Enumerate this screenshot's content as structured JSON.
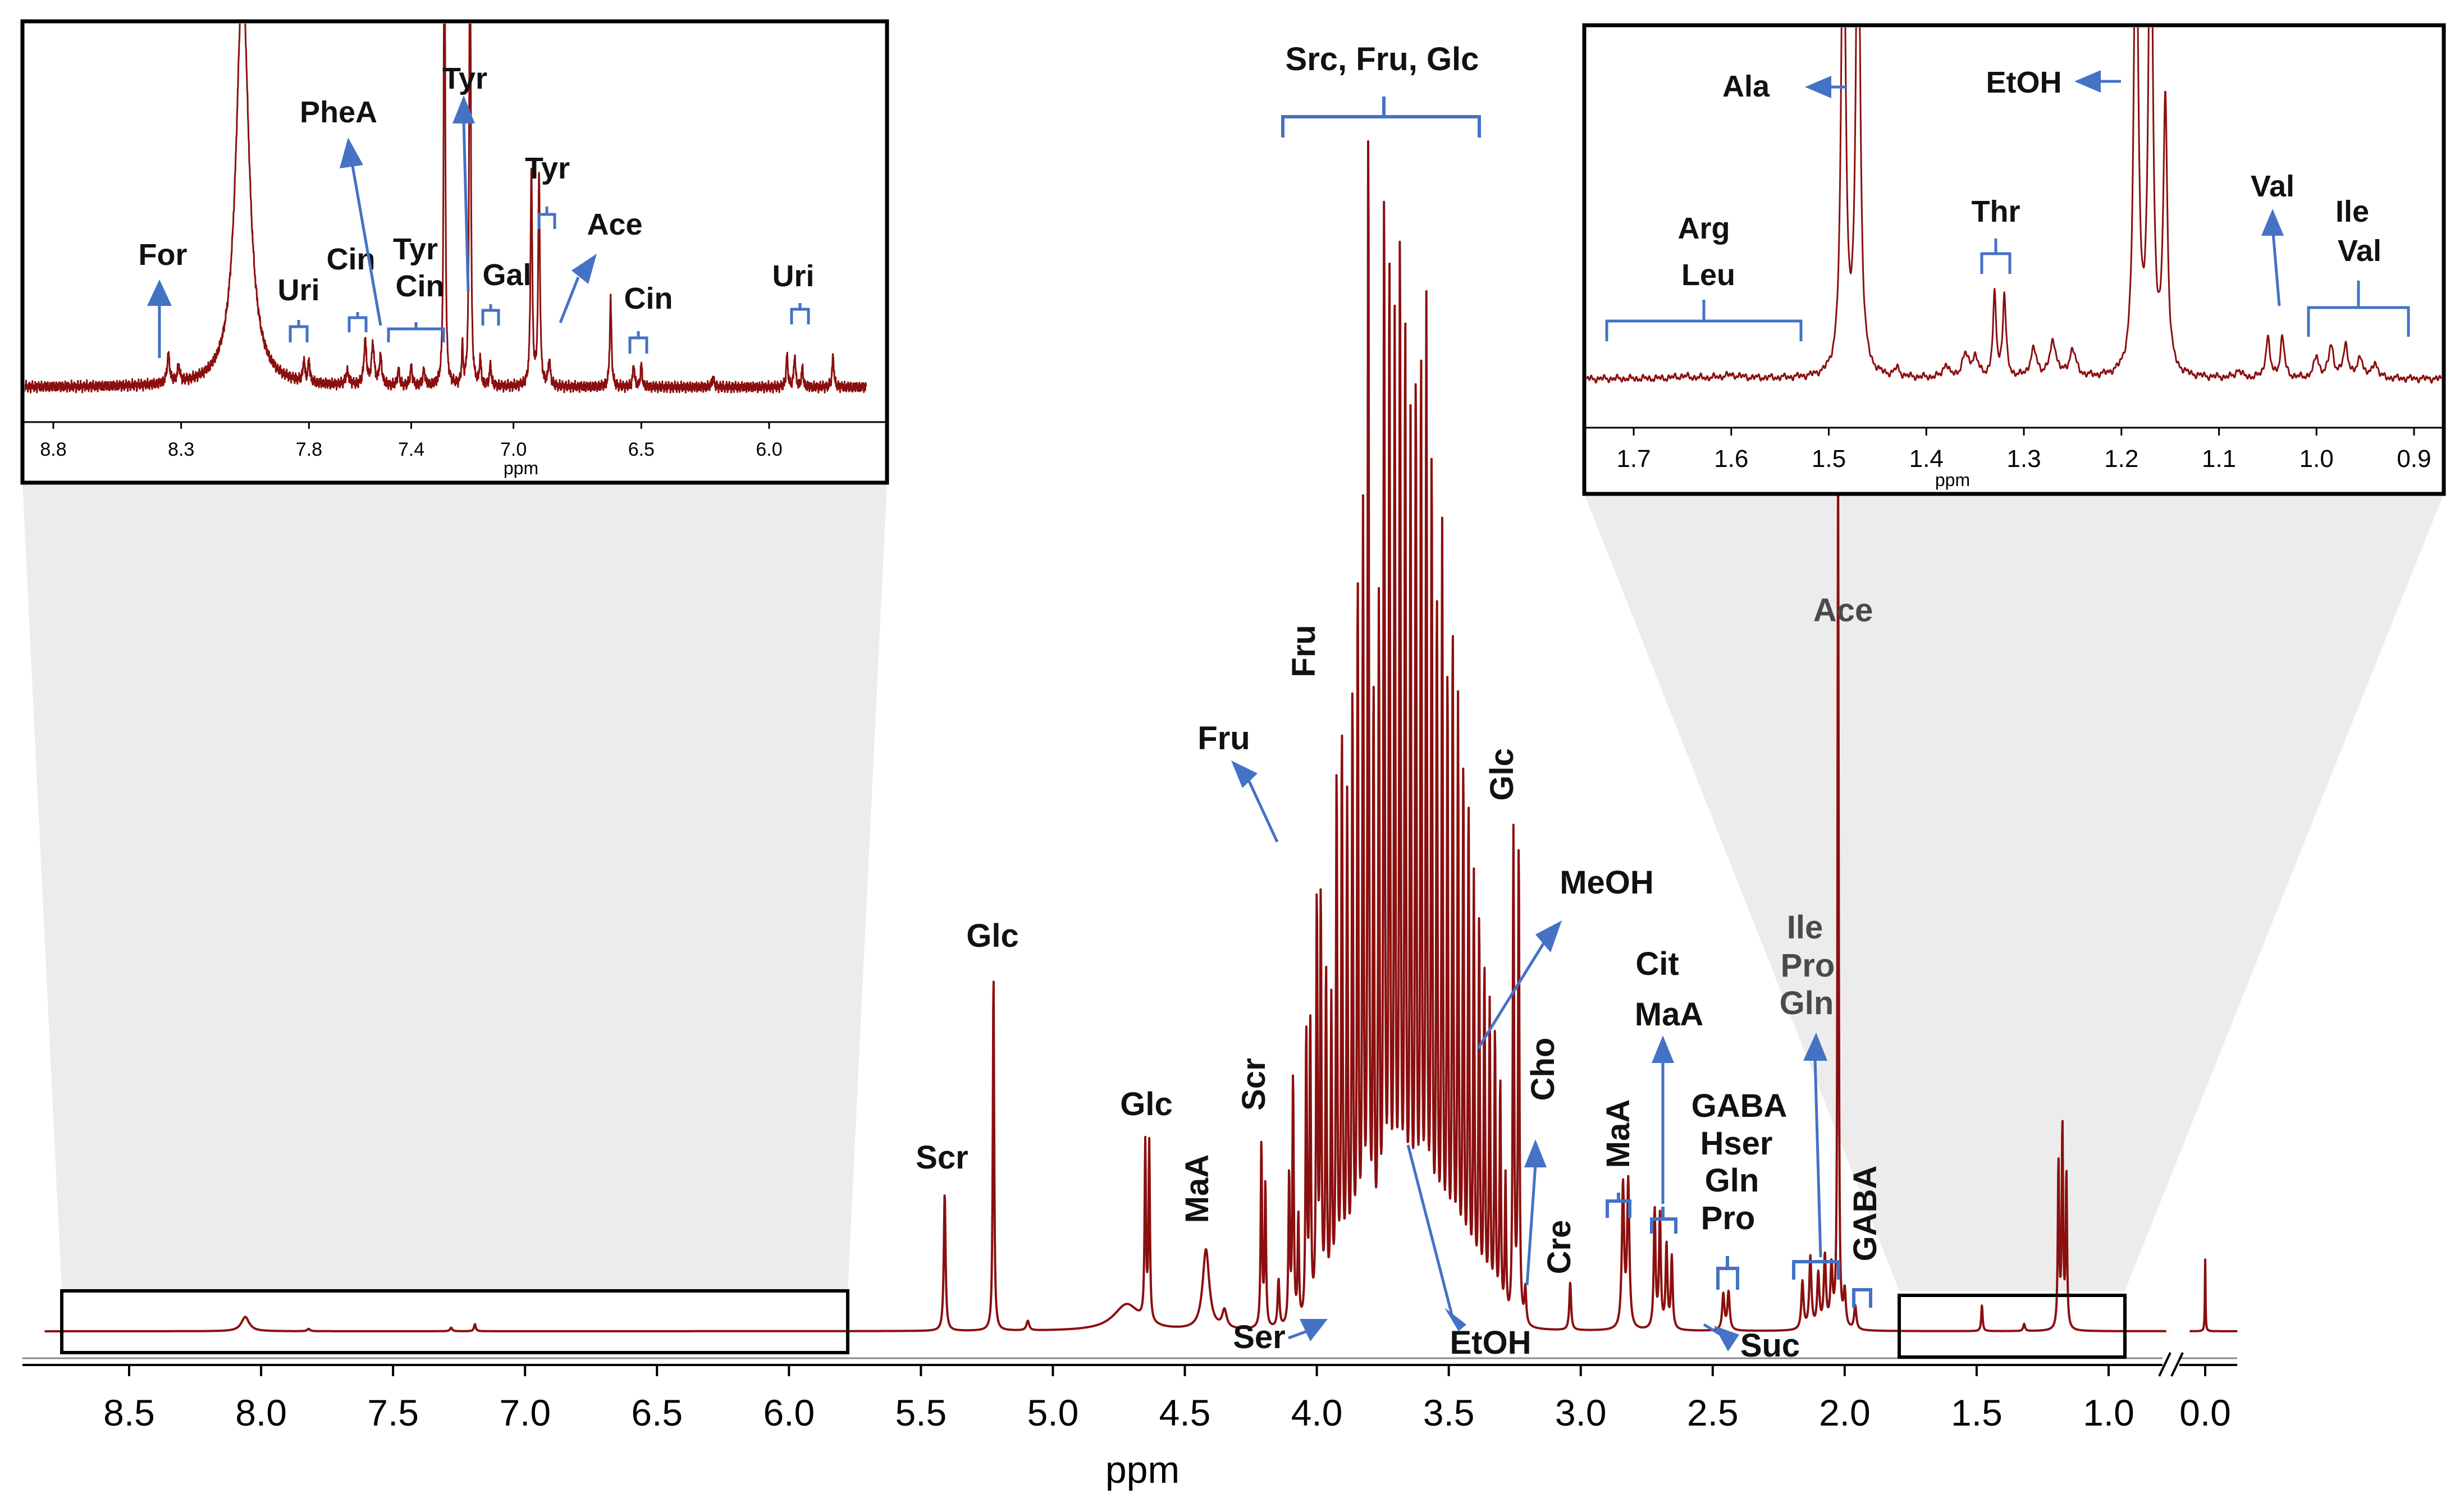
{
  "chart_data": {
    "type": "line",
    "title": "",
    "xlabel": "ppm",
    "axis": {
      "ticks": [
        "8.5",
        "8.0",
        "7.5",
        "7.0",
        "6.5",
        "6.0",
        "5.5",
        "5.0",
        "4.5",
        "4.0",
        "3.5",
        "3.0",
        "2.5",
        "2.0",
        "1.5",
        "1.0",
        "0.0"
      ]
    },
    "main_peaks": [
      {
        "ppm": 8.06,
        "h": 0.012,
        "w": 0.018
      },
      {
        "ppm": 7.82,
        "h": 0.002,
        "w": 0.006
      },
      {
        "ppm": 7.28,
        "h": 0.003,
        "w": 0.005
      },
      {
        "ppm": 7.19,
        "h": 0.006,
        "w": 0.004
      },
      {
        "ppm": 5.41,
        "h": 0.115,
        "w": 0.004
      },
      {
        "ppm": 5.225,
        "h": 0.3,
        "w": 0.003
      },
      {
        "ppm": 5.095,
        "h": 0.008,
        "w": 0.006
      },
      {
        "ppm": 4.72,
        "h": 0.022,
        "w": 0.06
      },
      {
        "ppm": 4.65,
        "h": 0.147,
        "w": 0.003
      },
      {
        "ppm": 4.635,
        "h": 0.148,
        "w": 0.003
      },
      {
        "ppm": 4.42,
        "h": 0.067,
        "w": 0.015
      },
      {
        "ppm": 4.35,
        "h": 0.015,
        "w": 0.01
      },
      {
        "ppm": 4.21,
        "h": 0.156,
        "w": 0.003
      },
      {
        "ppm": 4.195,
        "h": 0.12,
        "w": 0.003
      },
      {
        "ppm": 4.145,
        "h": 0.04,
        "w": 0.004
      },
      {
        "ppm": 4.105,
        "h": 0.126,
        "w": 0.003
      },
      {
        "ppm": 4.09,
        "h": 0.208,
        "w": 0.003
      },
      {
        "ppm": 4.07,
        "h": 0.09,
        "w": 0.003
      },
      {
        "ppm": 4.04,
        "h": 0.243,
        "w": 0.003
      },
      {
        "ppm": 4.025,
        "h": 0.25,
        "w": 0.003
      },
      {
        "ppm": 4.0,
        "h": 0.35,
        "w": 0.003
      },
      {
        "ppm": 3.985,
        "h": 0.35,
        "w": 0.003
      },
      {
        "ppm": 3.965,
        "h": 0.288,
        "w": 0.003
      },
      {
        "ppm": 3.945,
        "h": 0.258,
        "w": 0.003
      },
      {
        "ppm": 3.925,
        "h": 0.45,
        "w": 0.003
      },
      {
        "ppm": 3.905,
        "h": 0.48,
        "w": 0.003
      },
      {
        "ppm": 3.885,
        "h": 0.42,
        "w": 0.003
      },
      {
        "ppm": 3.865,
        "h": 0.51,
        "w": 0.003
      },
      {
        "ppm": 3.845,
        "h": 0.6,
        "w": 0.003
      },
      {
        "ppm": 3.825,
        "h": 0.65,
        "w": 0.003
      },
      {
        "ppm": 3.805,
        "h": 0.98,
        "w": 0.003
      },
      {
        "ppm": 3.785,
        "h": 0.5,
        "w": 0.003
      },
      {
        "ppm": 3.765,
        "h": 0.57,
        "w": 0.003
      },
      {
        "ppm": 3.745,
        "h": 0.92,
        "w": 0.003
      },
      {
        "ppm": 3.725,
        "h": 0.86,
        "w": 0.003
      },
      {
        "ppm": 3.705,
        "h": 0.8,
        "w": 0.003
      },
      {
        "ppm": 3.685,
        "h": 0.88,
        "w": 0.003
      },
      {
        "ppm": 3.665,
        "h": 0.81,
        "w": 0.003
      },
      {
        "ppm": 3.645,
        "h": 0.72,
        "w": 0.003
      },
      {
        "ppm": 3.625,
        "h": 0.76,
        "w": 0.003
      },
      {
        "ppm": 3.605,
        "h": 0.78,
        "w": 0.003
      },
      {
        "ppm": 3.585,
        "h": 0.82,
        "w": 0.003
      },
      {
        "ppm": 3.565,
        "h": 0.7,
        "w": 0.003
      },
      {
        "ppm": 3.545,
        "h": 0.58,
        "w": 0.003
      },
      {
        "ppm": 3.525,
        "h": 0.64,
        "w": 0.003
      },
      {
        "ppm": 3.505,
        "h": 0.52,
        "w": 0.003
      },
      {
        "ppm": 3.485,
        "h": 0.56,
        "w": 0.003
      },
      {
        "ppm": 3.465,
        "h": 0.5,
        "w": 0.003
      },
      {
        "ppm": 3.445,
        "h": 0.45,
        "w": 0.003
      },
      {
        "ppm": 3.425,
        "h": 0.42,
        "w": 0.003
      },
      {
        "ppm": 3.405,
        "h": 0.36,
        "w": 0.003
      },
      {
        "ppm": 3.385,
        "h": 0.33,
        "w": 0.003
      },
      {
        "ppm": 3.365,
        "h": 0.29,
        "w": 0.003
      },
      {
        "ppm": 3.345,
        "h": 0.26,
        "w": 0.003
      },
      {
        "ppm": 3.325,
        "h": 0.24,
        "w": 0.003
      },
      {
        "ppm": 3.305,
        "h": 0.2,
        "w": 0.003
      },
      {
        "ppm": 3.285,
        "h": 0.12,
        "w": 0.003
      },
      {
        "ppm": 3.255,
        "h": 0.41,
        "w": 0.003
      },
      {
        "ppm": 3.235,
        "h": 0.4,
        "w": 0.003
      },
      {
        "ppm": 3.21,
        "h": 0.03,
        "w": 0.004
      },
      {
        "ppm": 3.04,
        "h": 0.04,
        "w": 0.004
      },
      {
        "ppm": 2.84,
        "h": 0.12,
        "w": 0.005
      },
      {
        "ppm": 2.82,
        "h": 0.122,
        "w": 0.005
      },
      {
        "ppm": 2.72,
        "h": 0.1,
        "w": 0.004
      },
      {
        "ppm": 2.7,
        "h": 0.094,
        "w": 0.004
      },
      {
        "ppm": 2.675,
        "h": 0.07,
        "w": 0.004
      },
      {
        "ppm": 2.655,
        "h": 0.06,
        "w": 0.004
      },
      {
        "ppm": 2.46,
        "h": 0.03,
        "w": 0.005
      },
      {
        "ppm": 2.44,
        "h": 0.032,
        "w": 0.005
      },
      {
        "ppm": 2.16,
        "h": 0.04,
        "w": 0.005
      },
      {
        "ppm": 2.13,
        "h": 0.06,
        "w": 0.005
      },
      {
        "ppm": 2.1,
        "h": 0.045,
        "w": 0.005
      },
      {
        "ppm": 2.075,
        "h": 0.06,
        "w": 0.005
      },
      {
        "ppm": 2.05,
        "h": 0.05,
        "w": 0.005
      },
      {
        "ppm": 2.025,
        "h": 0.74,
        "w": 0.0025
      },
      {
        "ppm": 2.0,
        "h": 0.03,
        "w": 0.005
      },
      {
        "ppm": 1.96,
        "h": 0.02,
        "w": 0.005
      },
      {
        "ppm": 1.48,
        "h": 0.022,
        "w": 0.003
      },
      {
        "ppm": 1.32,
        "h": 0.006,
        "w": 0.004
      },
      {
        "ppm": 1.19,
        "h": 0.14,
        "w": 0.003
      },
      {
        "ppm": 1.175,
        "h": 0.17,
        "w": 0.003
      },
      {
        "ppm": 1.16,
        "h": 0.13,
        "w": 0.003
      },
      {
        "ppm": 0.0,
        "h": 0.06,
        "w": 0.003
      }
    ],
    "main_labels": [
      {
        "text": "Src, Fru, Glc"
      },
      {
        "text": "Fru"
      },
      {
        "text": "Fru"
      },
      {
        "text": "Glc"
      },
      {
        "text": "MeOH"
      },
      {
        "text": "Cho"
      },
      {
        "text": "Glc"
      },
      {
        "text": "Glc"
      },
      {
        "text": "Scr"
      },
      {
        "text": "Scr"
      },
      {
        "text": "MaA"
      },
      {
        "text": "Ser"
      },
      {
        "text": "EtOH"
      },
      {
        "text": "Cre"
      },
      {
        "text": "MaA"
      },
      {
        "text": "Cit"
      },
      {
        "text": "MaA"
      },
      {
        "text": "GABA"
      },
      {
        "text": "Hser"
      },
      {
        "text": "Gln"
      },
      {
        "text": "Pro"
      },
      {
        "text": "Suc"
      },
      {
        "text": "Ile"
      },
      {
        "text": "Pro"
      },
      {
        "text": "Gln"
      },
      {
        "text": "GABA"
      },
      {
        "text": "Ace"
      }
    ],
    "inset_aromatic": {
      "xlabel": "ppm",
      "ticks": [
        "8.8",
        "8.3",
        "7.8",
        "7.4",
        "7.0",
        "6.5",
        "6.0"
      ],
      "peaks": [
        {
          "ppm": 8.35,
          "h": 0.09,
          "w": 0.006
        },
        {
          "ppm": 8.31,
          "h": 0.05,
          "w": 0.006
        },
        {
          "ppm": 8.06,
          "h": 1.3,
          "w": 0.03
        },
        {
          "ppm": 7.82,
          "h": 0.07,
          "w": 0.004
        },
        {
          "ppm": 7.8,
          "h": 0.07,
          "w": 0.004
        },
        {
          "ppm": 7.65,
          "h": 0.04,
          "w": 0.008
        },
        {
          "ppm": 7.58,
          "h": 0.14,
          "w": 0.006
        },
        {
          "ppm": 7.55,
          "h": 0.13,
          "w": 0.006
        },
        {
          "ppm": 7.52,
          "h": 0.09,
          "w": 0.006
        },
        {
          "ppm": 7.45,
          "h": 0.05,
          "w": 0.005
        },
        {
          "ppm": 7.4,
          "h": 0.06,
          "w": 0.005
        },
        {
          "ppm": 7.35,
          "h": 0.05,
          "w": 0.005
        },
        {
          "ppm": 7.27,
          "h": 2.0,
          "w": 0.003
        },
        {
          "ppm": 7.2,
          "h": 0.12,
          "w": 0.003
        },
        {
          "ppm": 7.17,
          "h": 2.0,
          "w": 0.003
        },
        {
          "ppm": 7.13,
          "h": 0.08,
          "w": 0.004
        },
        {
          "ppm": 7.09,
          "h": 0.07,
          "w": 0.004
        },
        {
          "ppm": 6.93,
          "h": 0.7,
          "w": 0.004
        },
        {
          "ppm": 6.9,
          "h": 0.68,
          "w": 0.004
        },
        {
          "ppm": 6.86,
          "h": 0.08,
          "w": 0.005
        },
        {
          "ppm": 6.62,
          "h": 0.28,
          "w": 0.004
        },
        {
          "ppm": 6.53,
          "h": 0.07,
          "w": 0.004
        },
        {
          "ppm": 6.5,
          "h": 0.07,
          "w": 0.004
        },
        {
          "ppm": 6.22,
          "h": 0.03,
          "w": 0.005
        },
        {
          "ppm": 5.93,
          "h": 0.1,
          "w": 0.004
        },
        {
          "ppm": 5.9,
          "h": 0.1,
          "w": 0.004
        },
        {
          "ppm": 5.87,
          "h": 0.06,
          "w": 0.004
        },
        {
          "ppm": 5.75,
          "h": 0.1,
          "w": 0.004
        }
      ],
      "labels": [
        {
          "text": "For"
        },
        {
          "text": "Uri"
        },
        {
          "text": "Cin"
        },
        {
          "text": "PheA"
        },
        {
          "text": "Tyr"
        },
        {
          "text": "Cin"
        },
        {
          "text": "Tyr"
        },
        {
          "text": "Gal"
        },
        {
          "text": "Tyr"
        },
        {
          "text": "Ace"
        },
        {
          "text": "Cin"
        },
        {
          "text": "Uri"
        }
      ]
    },
    "inset_aliphatic": {
      "xlabel": "ppm",
      "ticks": [
        "1.7",
        "1.6",
        "1.5",
        "1.4",
        "1.3",
        "1.2",
        "1.1",
        "1.0",
        "0.9"
      ],
      "peaks": [
        {
          "ppm": 1.65,
          "h": 0.008,
          "w": 0.01
        },
        {
          "ppm": 1.6,
          "h": 0.012,
          "w": 0.012
        },
        {
          "ppm": 1.485,
          "h": 2.0,
          "w": 0.0025
        },
        {
          "ppm": 1.47,
          "h": 2.0,
          "w": 0.0025
        },
        {
          "ppm": 1.43,
          "h": 0.03,
          "w": 0.003
        },
        {
          "ppm": 1.38,
          "h": 0.05,
          "w": 0.003
        },
        {
          "ppm": 1.36,
          "h": 0.08,
          "w": 0.004
        },
        {
          "ppm": 1.35,
          "h": 0.07,
          "w": 0.004
        },
        {
          "ppm": 1.33,
          "h": 0.3,
          "w": 0.002
        },
        {
          "ppm": 1.32,
          "h": 0.3,
          "w": 0.002
        },
        {
          "ppm": 1.29,
          "h": 0.1,
          "w": 0.004
        },
        {
          "ppm": 1.27,
          "h": 0.13,
          "w": 0.004
        },
        {
          "ppm": 1.25,
          "h": 0.1,
          "w": 0.004
        },
        {
          "ppm": 1.185,
          "h": 2.0,
          "w": 0.0025
        },
        {
          "ppm": 1.17,
          "h": 2.0,
          "w": 0.0025
        },
        {
          "ppm": 1.155,
          "h": 1.0,
          "w": 0.0025
        },
        {
          "ppm": 1.08,
          "h": 0.03,
          "w": 0.003
        },
        {
          "ppm": 1.05,
          "h": 0.15,
          "w": 0.0025
        },
        {
          "ppm": 1.035,
          "h": 0.15,
          "w": 0.0025
        },
        {
          "ppm": 1.0,
          "h": 0.08,
          "w": 0.003
        },
        {
          "ppm": 0.985,
          "h": 0.12,
          "w": 0.003
        },
        {
          "ppm": 0.97,
          "h": 0.12,
          "w": 0.003
        },
        {
          "ppm": 0.955,
          "h": 0.08,
          "w": 0.003
        },
        {
          "ppm": 0.94,
          "h": 0.06,
          "w": 0.003
        }
      ],
      "labels": [
        {
          "text": "Ala"
        },
        {
          "text": "EtOH"
        },
        {
          "text": "Arg"
        },
        {
          "text": "Leu"
        },
        {
          "text": "Thr"
        },
        {
          "text": "Val"
        },
        {
          "text": "Ile"
        },
        {
          "text": "Val"
        }
      ]
    }
  }
}
